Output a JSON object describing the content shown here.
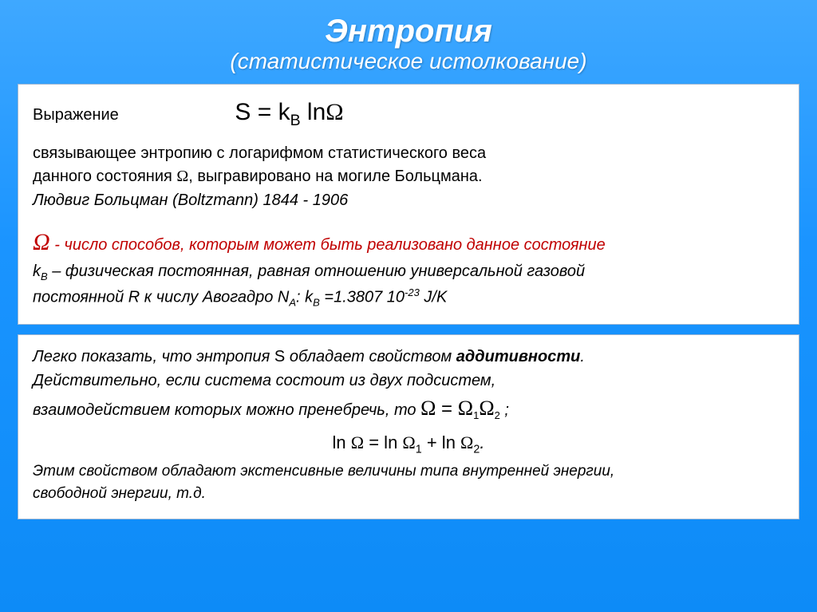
{
  "colors": {
    "bg_gradient_top": "#3fa8ff",
    "bg_gradient_bottom": "#0d8bf7",
    "panel_bg": "#ffffff",
    "panel_border": "#9db6d3",
    "title_text": "#ffffff",
    "body_text": "#000000",
    "accent_red": "#c00000"
  },
  "typography": {
    "title_fontsize_pt": 40,
    "subtitle_fontsize_pt": 28,
    "body_fontsize_pt": 20,
    "formula_fontsize_pt": 30,
    "title_style": "italic bold",
    "subtitle_style": "italic"
  },
  "title": "Энтропия",
  "subtitle": "(статистическое истолкование)",
  "panel1": {
    "expr_label": "Выражение",
    "formula": "S = k",
    "formula_sub": "B",
    "formula_tail": " ln",
    "formula_omega": "Ω",
    "line1": "связывающее энтропию  с логарифмом статистического веса",
    "line2_a": "данного состояния ",
    "line2_omega": "Ω",
    "line2_b": ", выгравировано на могиле Больцмана.",
    "line3": "Людвиг Больцман (Boltzmann) 1844 - 1906",
    "omega_sym": "Ω",
    "omega_dash": "  - ",
    "omega_def": "число способов, которым может быть реализовано данное состояние",
    "kb_a": "k",
    "kb_sub": "B",
    "kb_b": " – физическая постоянная, равная отношению универсальной газовой",
    "kb_line2_a": "постоянной R к числу Авогадро N",
    "kb_line2_sub": "A",
    "kb_line2_b": ": k",
    "kb_line2_sub2": "B",
    "kb_line2_c": " =1.3807 10",
    "kb_line2_sup": "-23",
    "kb_line2_d": " J/K"
  },
  "panel2": {
    "l1_a": "Легко показать, что энтропия ",
    "l1_S": "S",
    "l1_b": " обладает свойством    ",
    "l1_bold": "аддитивности",
    "l1_c": ".",
    "l2": "Действительно, если система состоит из двух подсистем,",
    "l3_a": "взаимодействием которых можно пренебречь, то   ",
    "eq1_omega": "Ω",
    "eq1_eq": " = ",
    "eq1_o1": "Ω",
    "eq1_s1": "1",
    "eq1_o2": "Ω",
    "eq1_s2": "2",
    "eq1_end": " ;",
    "eq2_a": "ln ",
    "eq2_o": "Ω",
    "eq2_b": " =  ln ",
    "eq2_o1": "Ω",
    "eq2_s1": "1",
    "eq2_c": " + ln ",
    "eq2_o2": "Ω",
    "eq2_s2": "2",
    "eq2_d": ".",
    "l4": "Этим свойством обладают экстенсивные величины типа внутренней энергии,",
    "l5": "свободной энергии, т.д."
  }
}
